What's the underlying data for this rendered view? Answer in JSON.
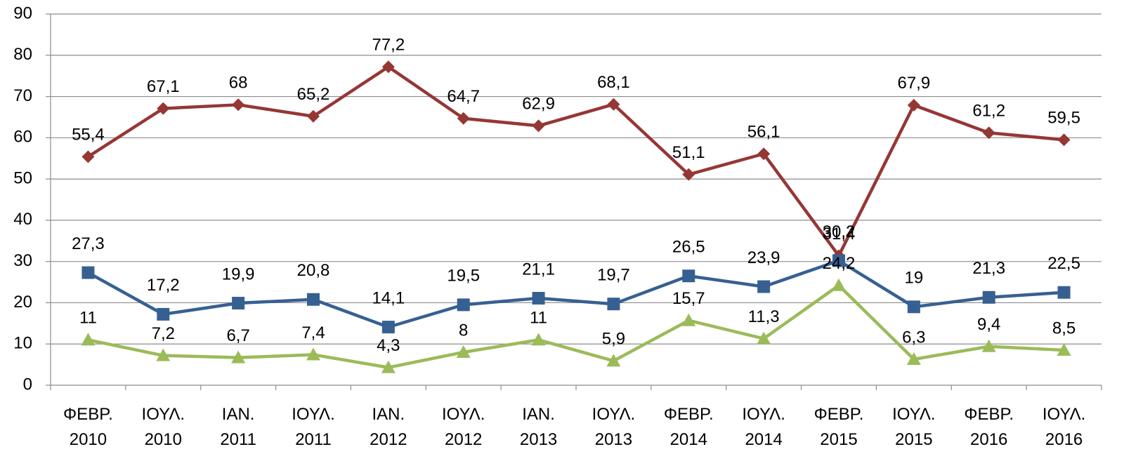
{
  "chart_data": {
    "type": "line",
    "categories": [
      "ΦΕΒΡ.\n2010",
      "ΙΟΥΛ.\n2010",
      "ΙΑΝ.\n2011",
      "ΙΟΥΛ.\n2011",
      "ΙΑΝ.\n2012",
      "ΙΟΥΛ.\n2012",
      "ΙΑΝ.\n2013",
      "ΙΟΥΛ.\n2013",
      "ΦΕΒΡ.\n2014",
      "ΙΟΥΛ.\n2014",
      "ΦΕΒΡ.\n2015",
      "ΙΟΥΛ.\n2015",
      "ΦΕΒΡ.\n2016",
      "ΙΟΥΛ.\n2016"
    ],
    "series": [
      {
        "color": "#953735",
        "marker": "diamond",
        "values": [
          55.4,
          67.1,
          68,
          65.2,
          77.2,
          64.7,
          62.9,
          68.1,
          51.1,
          56.1,
          31.4,
          67.9,
          61.2,
          59.5
        ],
        "value_labels": [
          "55,4",
          "67,1",
          "68",
          "65,2",
          "77,2",
          "64,7",
          "62,9",
          "68,1",
          "51,1",
          "56,1",
          "31,4",
          "67,9",
          "61,2",
          "59,5"
        ]
      },
      {
        "color": "#376092",
        "marker": "square",
        "values": [
          27.3,
          17.2,
          19.9,
          20.8,
          14.1,
          19.5,
          21.1,
          19.7,
          26.5,
          23.9,
          30.2,
          19,
          21.3,
          22.5
        ],
        "value_labels": [
          "27,3",
          "17,2",
          "19,9",
          "20,8",
          "14,1",
          "19,5",
          "21,1",
          "19,7",
          "26,5",
          "23,9",
          "30,2",
          "19",
          "21,3",
          "22,5"
        ]
      },
      {
        "color": "#9bbb59",
        "marker": "triangle",
        "values": [
          11,
          7.2,
          6.7,
          7.4,
          4.3,
          8,
          11,
          5.9,
          15.7,
          11.3,
          24.2,
          6.3,
          9.4,
          8.5
        ],
        "value_labels": [
          "11",
          "7,2",
          "6,7",
          "7,4",
          "4,3",
          "8",
          "11",
          "5,9",
          "15,7",
          "11,3",
          "24,2",
          "6,3",
          "9,4",
          "8,5"
        ]
      }
    ],
    "ylim": [
      0,
      90
    ],
    "yticks": [
      0,
      10,
      20,
      30,
      40,
      50,
      60,
      70,
      80,
      90
    ],
    "grid": true
  }
}
